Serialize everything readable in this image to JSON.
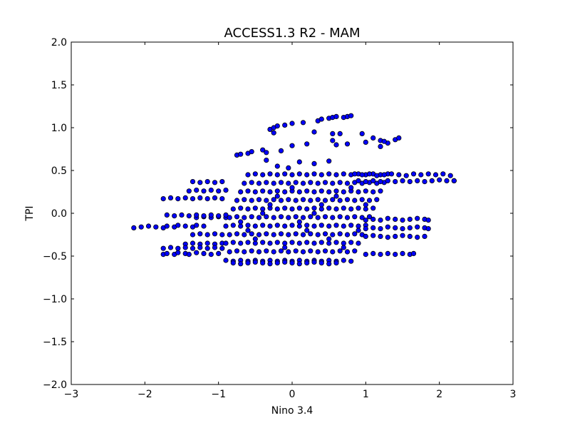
{
  "chart_data": {
    "type": "scatter",
    "title": "ACCESS1.3 R2 - MAM",
    "xlabel": "Nino 3.4",
    "ylabel": "TPI",
    "xlim": [
      -3,
      3
    ],
    "ylim": [
      -2,
      2
    ],
    "xticks": [
      -3,
      -2,
      -1,
      0,
      1,
      2,
      3
    ],
    "yticks": [
      -2.0,
      -1.5,
      -1.0,
      -0.5,
      0.0,
      0.5,
      1.0,
      1.5,
      2.0
    ],
    "xtick_labels": [
      "−3",
      "−2",
      "−1",
      "0",
      "1",
      "2",
      "3"
    ],
    "ytick_labels": [
      "−2.0",
      "−1.5",
      "−1.0",
      "−0.5",
      "0.0",
      "0.5",
      "1.0",
      "1.5",
      "2.0"
    ],
    "grid": false,
    "legend": "none",
    "marker_color": "#0000ff",
    "marker_edge_color": "#000000",
    "series": [
      {
        "x": [
          -2.15,
          -2.05,
          -1.95,
          -1.85,
          -1.75,
          -1.7,
          -1.6,
          -1.55,
          -1.45,
          -1.35,
          -1.3,
          -1.2,
          -1.75,
          -1.7,
          -1.6,
          -1.55,
          -1.45,
          -1.4,
          -1.3,
          -1.2,
          -1.1,
          -1.0,
          -1.75,
          -1.65,
          -1.55,
          -1.45,
          -1.35,
          -1.25,
          -1.15,
          -1.05,
          -0.95,
          -1.4,
          -1.3,
          -1.2,
          -1.1,
          -1.0,
          -0.9,
          -1.35,
          -1.25,
          -1.15,
          -1.05,
          -0.95,
          -1.3,
          -1.2,
          -1.1,
          -1.0,
          -0.9,
          -1.35,
          -1.25,
          -1.15,
          -1.05,
          -0.95,
          -1.45,
          -1.35,
          -1.25,
          -1.15,
          -1.05,
          -0.95,
          -1.7,
          -1.6,
          -1.5,
          -1.4,
          -1.3,
          -1.2,
          -1.1,
          -1.0,
          -0.9,
          -1.75,
          -1.65,
          -1.55,
          -1.45,
          -1.35,
          -1.25,
          -1.15,
          -1.05,
          -0.95,
          -0.9,
          -0.8,
          -0.7,
          -0.6,
          -0.5,
          -0.4,
          -0.3,
          -0.2,
          -0.1,
          0.0,
          0.1,
          0.2,
          0.3,
          0.4,
          0.5,
          0.6,
          0.7,
          0.8,
          -0.85,
          -0.75,
          -0.65,
          -0.55,
          -0.45,
          -0.35,
          -0.25,
          -0.15,
          -0.05,
          0.05,
          0.15,
          0.25,
          0.35,
          0.45,
          0.55,
          0.65,
          0.75,
          0.85,
          -0.9,
          -0.8,
          -0.7,
          -0.6,
          -0.5,
          -0.4,
          -0.3,
          -0.2,
          -0.1,
          0.0,
          0.1,
          0.2,
          0.3,
          0.4,
          0.5,
          0.6,
          0.7,
          0.8,
          0.9,
          -0.85,
          -0.75,
          -0.65,
          -0.55,
          -0.45,
          -0.35,
          -0.25,
          -0.15,
          -0.05,
          0.05,
          0.15,
          0.25,
          0.35,
          0.45,
          0.55,
          0.65,
          0.75,
          0.85,
          0.95,
          -0.9,
          -0.8,
          -0.7,
          -0.6,
          -0.5,
          -0.4,
          -0.3,
          -0.2,
          -0.1,
          0.0,
          0.1,
          0.2,
          0.3,
          0.4,
          0.5,
          0.6,
          0.7,
          0.8,
          0.9,
          1.0,
          -0.85,
          -0.75,
          -0.65,
          -0.55,
          -0.45,
          -0.35,
          -0.25,
          -0.15,
          -0.05,
          0.05,
          0.15,
          0.25,
          0.35,
          0.45,
          0.55,
          0.65,
          0.75,
          0.85,
          0.95,
          1.05,
          -0.8,
          -0.7,
          -0.6,
          -0.5,
          -0.4,
          -0.3,
          -0.2,
          -0.1,
          0.0,
          0.1,
          0.2,
          0.3,
          0.4,
          0.5,
          0.6,
          0.7,
          0.8,
          0.9,
          1.0,
          1.1,
          -0.75,
          -0.65,
          -0.55,
          -0.45,
          -0.35,
          -0.25,
          -0.15,
          -0.05,
          0.05,
          0.15,
          0.25,
          0.35,
          0.45,
          0.55,
          0.65,
          0.75,
          0.85,
          0.95,
          1.05,
          1.15,
          -0.7,
          -0.6,
          -0.5,
          -0.4,
          -0.3,
          -0.2,
          -0.1,
          0.0,
          0.1,
          0.2,
          0.3,
          0.4,
          0.5,
          0.6,
          0.7,
          0.8,
          0.9,
          1.0,
          1.1,
          1.2,
          -0.65,
          -0.55,
          -0.45,
          -0.35,
          -0.25,
          -0.15,
          -0.05,
          0.05,
          0.15,
          0.25,
          0.35,
          0.45,
          0.55,
          0.65,
          0.75,
          0.85,
          0.95,
          1.05,
          1.15,
          1.25,
          -0.6,
          -0.5,
          -0.4,
          -0.3,
          -0.2,
          -0.1,
          0.0,
          0.1,
          0.2,
          0.3,
          0.4,
          0.5,
          0.6,
          0.7,
          0.8,
          0.9,
          1.0,
          1.1,
          1.2,
          1.3,
          -0.7,
          -0.6,
          -0.5,
          -0.4,
          -0.3,
          -0.2,
          -0.1,
          0.0,
          0.1,
          0.2,
          0.3,
          0.4,
          0.5,
          0.6,
          0.7,
          0.8,
          0.9,
          1.0,
          -0.8,
          -0.7,
          -0.6,
          -0.5,
          -0.4,
          -0.3,
          -0.2,
          -0.1,
          0.0,
          0.1,
          0.2,
          0.3,
          0.4,
          0.5,
          0.6,
          0.85,
          0.95,
          1.05,
          1.15,
          1.25,
          1.35,
          1.45,
          1.55,
          1.65,
          1.75,
          1.85,
          1.95,
          2.05,
          2.15,
          2.2,
          0.9,
          1.0,
          1.1,
          1.2,
          1.3,
          1.4,
          1.5,
          1.6,
          1.7,
          1.8,
          1.9,
          2.0,
          2.1,
          2.2,
          1.0,
          1.1,
          1.2,
          1.3,
          1.4,
          1.5,
          1.6,
          1.7,
          1.8,
          1.85,
          1.0,
          1.1,
          1.2,
          1.3,
          1.4,
          1.5,
          1.6,
          1.7,
          1.8,
          1.85,
          1.0,
          1.1,
          1.2,
          1.3,
          1.4,
          1.5,
          1.6,
          1.7,
          1.8,
          1.0,
          1.1,
          1.2,
          1.3,
          1.4,
          1.5,
          1.6,
          1.65,
          -0.3,
          -0.25,
          -0.2,
          -0.1,
          0.0,
          0.15,
          0.35,
          0.4,
          0.5,
          0.55,
          0.6,
          0.7,
          0.75,
          0.8,
          -0.25,
          0.3,
          0.55,
          0.65,
          0.95,
          1.1,
          1.2,
          1.3,
          1.4,
          1.45,
          -0.75,
          -0.7,
          -0.6,
          -0.55,
          -0.4,
          -0.35,
          -0.15,
          0.0,
          0.2,
          0.55,
          0.6,
          0.75,
          1.0,
          1.2,
          1.25,
          -0.35,
          -0.2,
          -0.05,
          0.1,
          0.3,
          0.5
        ],
        "y": [
          -0.17,
          -0.16,
          -0.15,
          -0.16,
          -0.17,
          -0.15,
          -0.16,
          -0.14,
          -0.15,
          -0.16,
          -0.14,
          -0.15,
          -0.48,
          -0.47,
          -0.48,
          -0.46,
          -0.47,
          -0.48,
          -0.46,
          -0.47,
          -0.48,
          -0.47,
          0.17,
          0.18,
          0.17,
          0.18,
          0.17,
          0.18,
          0.17,
          0.18,
          0.17,
          0.26,
          0.27,
          0.26,
          0.27,
          0.26,
          0.27,
          0.37,
          0.36,
          0.37,
          0.36,
          0.37,
          -0.05,
          -0.04,
          -0.05,
          -0.04,
          -0.05,
          -0.25,
          -0.24,
          -0.25,
          -0.24,
          -0.25,
          -0.36,
          -0.35,
          -0.36,
          -0.35,
          -0.36,
          -0.35,
          -0.02,
          -0.03,
          -0.02,
          -0.03,
          -0.02,
          -0.03,
          -0.02,
          -0.03,
          -0.02,
          -0.41,
          -0.4,
          -0.41,
          -0.4,
          -0.41,
          -0.4,
          -0.41,
          -0.4,
          -0.41,
          -0.55,
          -0.56,
          -0.55,
          -0.56,
          -0.55,
          -0.56,
          -0.55,
          -0.56,
          -0.55,
          -0.56,
          -0.55,
          -0.56,
          -0.55,
          -0.56,
          -0.55,
          -0.56,
          -0.55,
          -0.56,
          -0.45,
          -0.44,
          -0.45,
          -0.44,
          -0.45,
          -0.44,
          -0.45,
          -0.44,
          -0.45,
          -0.44,
          -0.45,
          -0.44,
          -0.45,
          -0.44,
          -0.45,
          -0.44,
          -0.45,
          -0.44,
          -0.35,
          -0.34,
          -0.35,
          -0.34,
          -0.35,
          -0.34,
          -0.35,
          -0.34,
          -0.35,
          -0.34,
          -0.35,
          -0.34,
          -0.35,
          -0.34,
          -0.35,
          -0.34,
          -0.35,
          -0.34,
          -0.35,
          -0.25,
          -0.24,
          -0.25,
          -0.24,
          -0.25,
          -0.24,
          -0.25,
          -0.24,
          -0.25,
          -0.24,
          -0.25,
          -0.24,
          -0.25,
          -0.24,
          -0.25,
          -0.24,
          -0.25,
          -0.24,
          -0.25,
          -0.15,
          -0.14,
          -0.15,
          -0.14,
          -0.15,
          -0.14,
          -0.15,
          -0.14,
          -0.15,
          -0.14,
          -0.15,
          -0.14,
          -0.15,
          -0.14,
          -0.15,
          -0.14,
          -0.15,
          -0.14,
          -0.15,
          -0.14,
          -0.05,
          -0.04,
          -0.05,
          -0.04,
          -0.05,
          -0.04,
          -0.05,
          -0.04,
          -0.05,
          -0.04,
          -0.05,
          -0.04,
          -0.05,
          -0.04,
          -0.05,
          -0.04,
          -0.05,
          -0.04,
          -0.05,
          -0.04,
          0.05,
          0.06,
          0.05,
          0.06,
          0.05,
          0.06,
          0.05,
          0.06,
          0.05,
          0.06,
          0.05,
          0.06,
          0.05,
          0.06,
          0.05,
          0.06,
          0.05,
          0.06,
          0.05,
          0.06,
          0.15,
          0.16,
          0.15,
          0.16,
          0.15,
          0.16,
          0.15,
          0.16,
          0.15,
          0.16,
          0.15,
          0.16,
          0.15,
          0.16,
          0.15,
          0.16,
          0.15,
          0.16,
          0.15,
          0.16,
          0.25,
          0.26,
          0.25,
          0.26,
          0.25,
          0.26,
          0.25,
          0.26,
          0.25,
          0.26,
          0.25,
          0.26,
          0.25,
          0.26,
          0.25,
          0.26,
          0.25,
          0.26,
          0.25,
          0.26,
          0.35,
          0.36,
          0.35,
          0.36,
          0.35,
          0.36,
          0.35,
          0.36,
          0.35,
          0.36,
          0.35,
          0.36,
          0.35,
          0.36,
          0.35,
          0.36,
          0.35,
          0.36,
          0.35,
          0.36,
          0.45,
          0.46,
          0.45,
          0.46,
          0.45,
          0.46,
          0.45,
          0.46,
          0.45,
          0.46,
          0.45,
          0.46,
          0.45,
          0.46,
          0.45,
          0.46,
          0.45,
          0.46,
          0.45,
          0.46,
          -0.1,
          -0.2,
          -0.3,
          0.0,
          0.1,
          0.2,
          -0.4,
          0.3,
          -0.1,
          -0.2,
          0.0,
          0.1,
          -0.3,
          0.2,
          -0.4,
          0.3,
          -0.2,
          0.1,
          -0.58,
          -0.59,
          -0.58,
          -0.57,
          -0.58,
          -0.59,
          -0.58,
          -0.57,
          -0.58,
          -0.59,
          -0.58,
          -0.57,
          -0.58,
          -0.59,
          -0.58,
          0.46,
          0.45,
          0.46,
          0.44,
          0.45,
          0.46,
          0.45,
          0.44,
          0.46,
          0.45,
          0.46,
          0.45,
          0.46,
          0.44,
          0.38,
          0.38,
          0.37,
          0.38,
          0.37,
          0.38,
          0.37,
          0.38,
          0.37,
          0.38,
          0.37,
          0.38,
          0.39,
          0.38,
          0.38,
          -0.08,
          -0.07,
          -0.08,
          -0.06,
          -0.07,
          -0.08,
          -0.07,
          -0.06,
          -0.07,
          -0.08,
          -0.18,
          -0.17,
          -0.18,
          -0.16,
          -0.17,
          -0.18,
          -0.17,
          -0.16,
          -0.17,
          -0.18,
          -0.27,
          -0.26,
          -0.27,
          -0.28,
          -0.27,
          -0.26,
          -0.27,
          -0.28,
          -0.27,
          -0.48,
          -0.47,
          -0.48,
          -0.47,
          -0.48,
          -0.47,
          -0.48,
          -0.47,
          0.98,
          1.0,
          1.02,
          1.03,
          1.05,
          1.06,
          1.08,
          1.1,
          1.11,
          1.12,
          1.13,
          1.12,
          1.13,
          1.14,
          0.94,
          0.95,
          0.93,
          0.93,
          0.93,
          0.88,
          0.85,
          0.82,
          0.86,
          0.88,
          0.68,
          0.69,
          0.7,
          0.72,
          0.74,
          0.71,
          0.73,
          0.79,
          0.81,
          0.85,
          0.8,
          0.81,
          0.83,
          0.78,
          0.84,
          0.62,
          0.55,
          0.53,
          0.6,
          0.58,
          0.61
        ]
      }
    ]
  }
}
